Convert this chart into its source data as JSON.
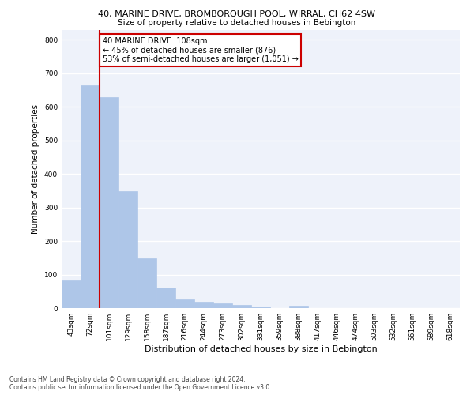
{
  "title1": "40, MARINE DRIVE, BROMBOROUGH POOL, WIRRAL, CH62 4SW",
  "title2": "Size of property relative to detached houses in Bebington",
  "xlabel": "Distribution of detached houses by size in Bebington",
  "ylabel": "Number of detached properties",
  "categories": [
    "43sqm",
    "72sqm",
    "101sqm",
    "129sqm",
    "158sqm",
    "187sqm",
    "216sqm",
    "244sqm",
    "273sqm",
    "302sqm",
    "331sqm",
    "359sqm",
    "388sqm",
    "417sqm",
    "446sqm",
    "474sqm",
    "503sqm",
    "532sqm",
    "561sqm",
    "589sqm",
    "618sqm"
  ],
  "values": [
    83,
    663,
    628,
    348,
    148,
    62,
    25,
    20,
    15,
    10,
    5,
    0,
    7,
    0,
    0,
    0,
    0,
    0,
    0,
    0,
    0
  ],
  "bar_color": "#aec6e8",
  "bar_edgecolor": "#aec6e8",
  "vline_x": 2,
  "vline_color": "#cc0000",
  "annotation_text": "40 MARINE DRIVE: 108sqm\n← 45% of detached houses are smaller (876)\n53% of semi-detached houses are larger (1,051) →",
  "annotation_box_color": "#ffffff",
  "annotation_box_edgecolor": "#cc0000",
  "ylim": [
    0,
    830
  ],
  "yticks": [
    0,
    100,
    200,
    300,
    400,
    500,
    600,
    700,
    800
  ],
  "background_color": "#eef2fa",
  "grid_color": "#ffffff",
  "footer1": "Contains HM Land Registry data © Crown copyright and database right 2024.",
  "footer2": "Contains public sector information licensed under the Open Government Licence v3.0."
}
